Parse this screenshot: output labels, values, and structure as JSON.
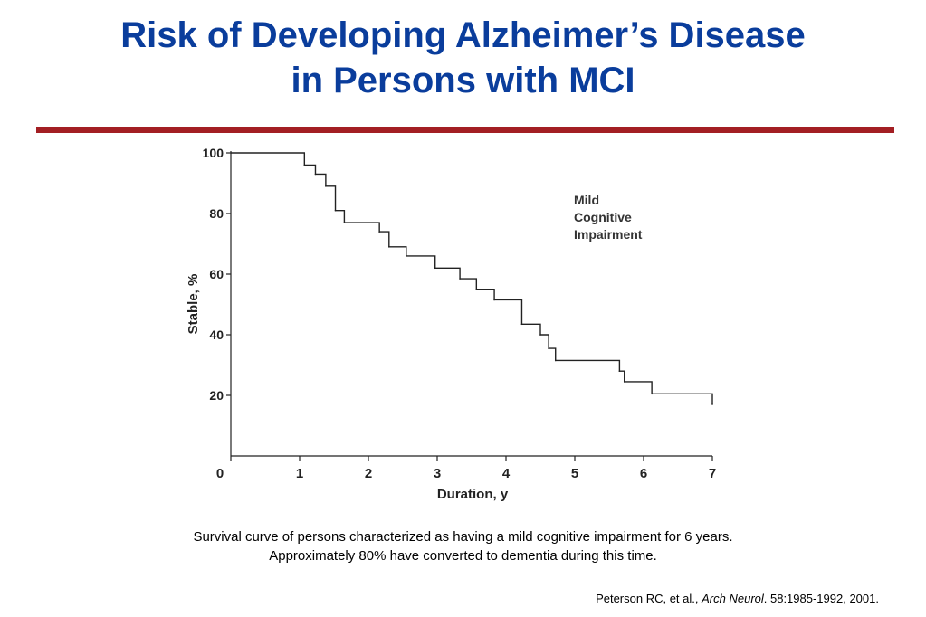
{
  "slide": {
    "title_line1": "Risk of Developing Alzheimer’s Disease",
    "title_line2": "in Persons with MCI",
    "caption_line1": "Survival curve of persons characterized as having a mild cognitive impairment for 6 years.",
    "caption_line2": "Approximately 80% have converted to dementia during this time.",
    "citation_authors": "Peterson RC, et al., ",
    "citation_journal": "Arch Neurol",
    "citation_rest": ". 58:1985-1992, 2001."
  },
  "colors": {
    "title": "#0a3d9c",
    "rule": "#a31f23",
    "line": "#222222"
  },
  "chart_data": {
    "type": "line",
    "step": true,
    "title": "",
    "xlabel": "Duration, y",
    "ylabel": "Stable, %",
    "xlim": [
      0,
      7
    ],
    "ylim": [
      0,
      100
    ],
    "xticks": [
      0,
      1,
      2,
      3,
      4,
      5,
      6,
      7
    ],
    "yticks": [
      20,
      40,
      60,
      80,
      100
    ],
    "grid": false,
    "annotation": [
      "Mild",
      "Cognitive",
      "Impairment"
    ],
    "series": [
      {
        "x": [
          0,
          1.07,
          1.23,
          1.38,
          1.52,
          1.65,
          2.16,
          2.3,
          2.55,
          2.97,
          3.33,
          3.57,
          3.83,
          4.23,
          4.5,
          4.62,
          4.72,
          5.65,
          5.72,
          6.12,
          7.0
        ],
        "y": [
          100,
          96,
          93,
          89,
          81,
          77,
          74,
          69,
          66,
          62,
          58.5,
          55,
          51.5,
          43.5,
          40,
          35.5,
          31.5,
          28,
          24.5,
          20.5,
          17
        ]
      }
    ]
  }
}
